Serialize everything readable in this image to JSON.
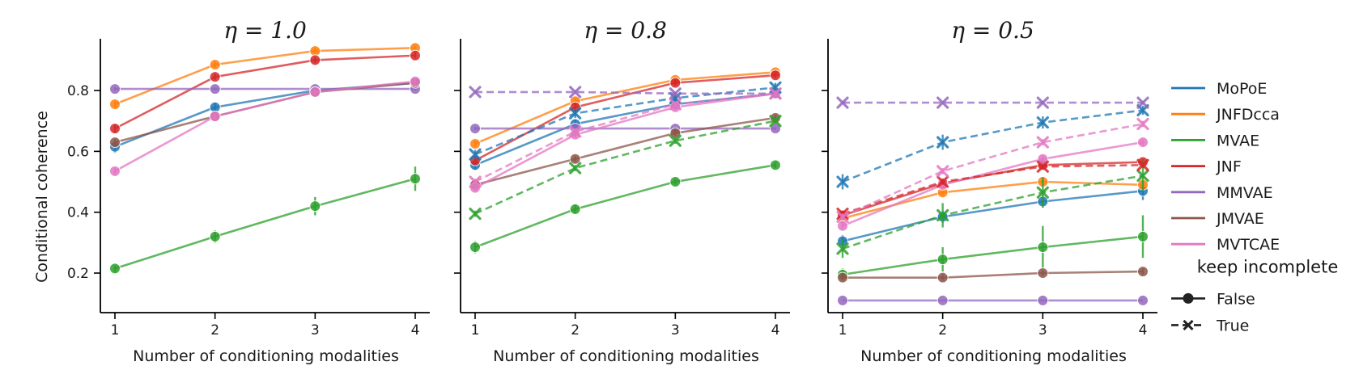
{
  "figure": {
    "ylabel": "Conditional coherence",
    "legend": {
      "placement": "right",
      "models": [
        "MoPoE",
        "JNFDcca",
        "MVAE",
        "JNF",
        "MMVAE",
        "JMVAE",
        "MVTCAE"
      ],
      "style_title": "keep incomplete",
      "styles": [
        "False",
        "True"
      ]
    },
    "colors": {
      "MoPoE": "#1f77b4",
      "JNFDcca": "#ff7f0e",
      "MVAE": "#2ca02c",
      "JNF": "#d62728",
      "MMVAE": "#9467bd",
      "JMVAE": "#8c564b",
      "MVTCAE": "#e377c2"
    }
  },
  "chart_data": [
    {
      "type": "line",
      "title": "η = 1.0",
      "xlabel": "Number of conditioning modalities",
      "ylabel": "Conditional coherence",
      "x": [
        1,
        2,
        3,
        4
      ],
      "xticks": [
        "1",
        "2",
        "3",
        "4"
      ],
      "yticks": [
        "0.2",
        "0.4",
        "0.6",
        "0.8"
      ],
      "ylim": [
        0.07,
        0.97
      ],
      "series": [
        {
          "name": "MoPoE",
          "keep_incomplete": "False",
          "values": [
            0.615,
            0.745,
            0.8,
            0.825
          ],
          "err": [
            0.02,
            0.015,
            0.015,
            0.015
          ]
        },
        {
          "name": "JNFDcca",
          "keep_incomplete": "False",
          "values": [
            0.755,
            0.885,
            0.93,
            0.94
          ],
          "err": [
            0.01,
            0.01,
            0.01,
            0.01
          ]
        },
        {
          "name": "MVAE",
          "keep_incomplete": "False",
          "values": [
            0.215,
            0.32,
            0.42,
            0.51
          ],
          "err": [
            0.01,
            0.02,
            0.03,
            0.04
          ]
        },
        {
          "name": "JNF",
          "keep_incomplete": "False",
          "values": [
            0.675,
            0.845,
            0.9,
            0.915
          ],
          "err": [
            0.015,
            0.01,
            0.01,
            0.01
          ]
        },
        {
          "name": "MMVAE",
          "keep_incomplete": "False",
          "values": [
            0.805,
            0.805,
            0.805,
            0.805
          ],
          "err": [
            0.005,
            0.005,
            0.005,
            0.005
          ]
        },
        {
          "name": "JMVAE",
          "keep_incomplete": "False",
          "values": [
            0.63,
            0.715,
            0.795,
            0.825
          ],
          "err": [
            0.01,
            0.01,
            0.01,
            0.01
          ]
        },
        {
          "name": "MVTCAE",
          "keep_incomplete": "False",
          "values": [
            0.535,
            0.715,
            0.795,
            0.83
          ],
          "err": [
            0.01,
            0.01,
            0.01,
            0.01
          ]
        }
      ]
    },
    {
      "type": "line",
      "title": "η = 0.8",
      "xlabel": "Number of conditioning modalities",
      "ylabel": "",
      "x": [
        1,
        2,
        3,
        4
      ],
      "xticks": [
        "1",
        "2",
        "3",
        "4"
      ],
      "yticks": [
        "",
        "",
        "",
        ""
      ],
      "ylim": [
        0.07,
        0.97
      ],
      "series": [
        {
          "name": "MoPoE",
          "keep_incomplete": "False",
          "values": [
            0.555,
            0.69,
            0.755,
            0.79
          ],
          "err": [
            0.015,
            0.015,
            0.015,
            0.015
          ]
        },
        {
          "name": "JNFDcca",
          "keep_incomplete": "False",
          "values": [
            0.625,
            0.765,
            0.835,
            0.86
          ],
          "err": [
            0.01,
            0.01,
            0.01,
            0.01
          ]
        },
        {
          "name": "MVAE",
          "keep_incomplete": "False",
          "values": [
            0.285,
            0.41,
            0.5,
            0.555
          ],
          "err": [
            0.02,
            0.015,
            0.01,
            0.01
          ]
        },
        {
          "name": "JNF",
          "keep_incomplete": "False",
          "values": [
            0.57,
            0.745,
            0.825,
            0.85
          ],
          "err": [
            0.015,
            0.015,
            0.01,
            0.01
          ]
        },
        {
          "name": "MMVAE",
          "keep_incomplete": "False",
          "values": [
            0.675,
            0.675,
            0.675,
            0.675
          ],
          "err": [
            0.005,
            0.005,
            0.005,
            0.005
          ]
        },
        {
          "name": "JMVAE",
          "keep_incomplete": "False",
          "values": [
            0.49,
            0.575,
            0.66,
            0.71
          ],
          "err": [
            0.01,
            0.01,
            0.01,
            0.01
          ]
        },
        {
          "name": "MVTCAE",
          "keep_incomplete": "False",
          "values": [
            0.48,
            0.655,
            0.745,
            0.79
          ],
          "err": [
            0.01,
            0.01,
            0.01,
            0.01
          ]
        },
        {
          "name": "MoPoE",
          "keep_incomplete": "True",
          "values": [
            0.59,
            0.725,
            0.775,
            0.81
          ],
          "err": [
            0.015,
            0.015,
            0.015,
            0.015
          ]
        },
        {
          "name": "MVAE",
          "keep_incomplete": "True",
          "values": [
            0.395,
            0.545,
            0.635,
            0.7
          ],
          "err": [
            0.01,
            0.01,
            0.01,
            0.01
          ]
        },
        {
          "name": "MMVAE",
          "keep_incomplete": "True",
          "values": [
            0.795,
            0.795,
            0.79,
            0.79
          ],
          "err": [
            0.005,
            0.005,
            0.005,
            0.005
          ]
        },
        {
          "name": "MVTCAE",
          "keep_incomplete": "True",
          "values": [
            0.5,
            0.665,
            0.755,
            0.79
          ],
          "err": [
            0.01,
            0.01,
            0.01,
            0.01
          ]
        }
      ]
    },
    {
      "type": "line",
      "title": "η = 0.5",
      "xlabel": "Number of conditioning modalities",
      "ylabel": "",
      "x": [
        1,
        2,
        3,
        4
      ],
      "xticks": [
        "1",
        "2",
        "3",
        "4"
      ],
      "yticks": [
        "",
        "",
        "",
        ""
      ],
      "ylim": [
        0.07,
        0.97
      ],
      "series": [
        {
          "name": "MoPoE",
          "keep_incomplete": "False",
          "values": [
            0.305,
            0.385,
            0.435,
            0.47
          ],
          "err": [
            0.02,
            0.02,
            0.02,
            0.03
          ]
        },
        {
          "name": "JNFDcca",
          "keep_incomplete": "False",
          "values": [
            0.38,
            0.465,
            0.5,
            0.49
          ],
          "err": [
            0.01,
            0.01,
            0.01,
            0.01
          ]
        },
        {
          "name": "MVAE",
          "keep_incomplete": "False",
          "values": [
            0.195,
            0.245,
            0.285,
            0.32
          ],
          "err": [
            0.02,
            0.04,
            0.07,
            0.07
          ]
        },
        {
          "name": "JNF",
          "keep_incomplete": "False",
          "values": [
            0.39,
            0.495,
            0.555,
            0.565
          ],
          "err": [
            0.01,
            0.01,
            0.01,
            0.01
          ]
        },
        {
          "name": "MMVAE",
          "keep_incomplete": "False",
          "values": [
            0.11,
            0.11,
            0.11,
            0.11
          ],
          "err": [
            0.0,
            0.0,
            0.0,
            0.0
          ]
        },
        {
          "name": "JMVAE",
          "keep_incomplete": "False",
          "values": [
            0.185,
            0.185,
            0.2,
            0.205
          ],
          "err": [
            0.01,
            0.01,
            0.01,
            0.01
          ]
        },
        {
          "name": "MVTCAE",
          "keep_incomplete": "False",
          "values": [
            0.355,
            0.49,
            0.575,
            0.63
          ],
          "err": [
            0.01,
            0.01,
            0.01,
            0.01
          ]
        },
        {
          "name": "MoPoE",
          "keep_incomplete": "True",
          "values": [
            0.5,
            0.63,
            0.695,
            0.735
          ],
          "err": [
            0.025,
            0.025,
            0.02,
            0.015
          ]
        },
        {
          "name": "MVAE",
          "keep_incomplete": "True",
          "values": [
            0.28,
            0.39,
            0.465,
            0.52
          ],
          "err": [
            0.03,
            0.04,
            0.05,
            0.05
          ]
        },
        {
          "name": "JNF",
          "keep_incomplete": "True",
          "values": [
            0.395,
            0.5,
            0.55,
            0.555
          ],
          "err": [
            0.01,
            0.01,
            0.01,
            0.01
          ]
        },
        {
          "name": "MMVAE",
          "keep_incomplete": "True",
          "values": [
            0.76,
            0.76,
            0.76,
            0.76
          ],
          "err": [
            0.005,
            0.005,
            0.005,
            0.005
          ]
        },
        {
          "name": "MVTCAE",
          "keep_incomplete": "True",
          "values": [
            0.385,
            0.535,
            0.63,
            0.69
          ],
          "err": [
            0.01,
            0.01,
            0.01,
            0.01
          ]
        }
      ]
    }
  ]
}
